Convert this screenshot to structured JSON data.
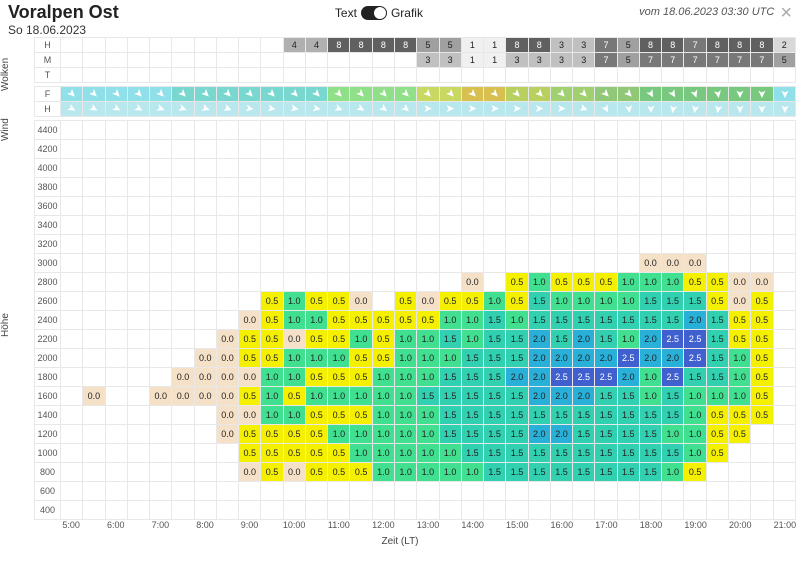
{
  "header": {
    "title": "Voralpen Ost",
    "date": "So 18.06.2023",
    "toggle_left": "Text",
    "toggle_right": "Grafik",
    "timestamp": "vom 18.06.2023 03:30 UTC",
    "close": "×"
  },
  "sections": {
    "wolken": "Wolken",
    "wind": "Wind",
    "hoehe": "Höhe"
  },
  "xaxis": {
    "label": "Zeit (LT)",
    "ticks": [
      "5:00",
      "6:00",
      "7:00",
      "8:00",
      "9:00",
      "10:00",
      "11:00",
      "12:00",
      "13:00",
      "14:00",
      "15:00",
      "16:00",
      "17:00",
      "18:00",
      "19:00",
      "20:00",
      "21:00"
    ]
  },
  "colors": {
    "cloud": {
      "1": "#f0f0f0",
      "2": "#d8d8d8",
      "3": "#c0c0c0",
      "4": "#b0b0b0",
      "5": "#a0a0a0",
      "7": "#787878",
      "8": "#606060"
    },
    "wind_f_base": "#8fe0e8",
    "wind_h_base": "#b8e8ee",
    "thermal": {
      "0.0": "#f5e0c8",
      "0.5": "#f5f000",
      "1.0": "#40e090",
      "1.5": "#30d0b0",
      "2.0": "#28b0d8",
      "2.5": "#4060d0"
    }
  },
  "cloud_rows": [
    {
      "label": "H",
      "cells": [
        null,
        null,
        null,
        null,
        null,
        null,
        null,
        null,
        null,
        null,
        "4",
        "4",
        "8",
        "8",
        "8",
        "8",
        "5",
        "5",
        "1",
        "1",
        "8",
        "8",
        "3",
        "3",
        "7",
        "5",
        "8",
        "8",
        "7",
        "8",
        "8",
        "8",
        "2"
      ]
    },
    {
      "label": "M",
      "cells": [
        null,
        null,
        null,
        null,
        null,
        null,
        null,
        null,
        null,
        null,
        null,
        null,
        null,
        null,
        null,
        null,
        "3",
        "3",
        "1",
        "1",
        "3",
        "3",
        "3",
        "3",
        "7",
        "5",
        "7",
        "7",
        "7",
        "7",
        "7",
        "7",
        "5"
      ]
    },
    {
      "label": "T",
      "cells": [
        null,
        null,
        null,
        null,
        null,
        null,
        null,
        null,
        null,
        null,
        null,
        null,
        null,
        null,
        null,
        null,
        null,
        null,
        null,
        null,
        null,
        null,
        null,
        null,
        null,
        null,
        null,
        null,
        null,
        null,
        null,
        null,
        null
      ]
    }
  ],
  "wind_rows": [
    {
      "label": "F",
      "cells": [
        {
          "c": "#8fe0e8",
          "r": 45
        },
        {
          "c": "#8fe0e8",
          "r": 45
        },
        {
          "c": "#8fe0e8",
          "r": 45
        },
        {
          "c": "#8fe0e8",
          "r": 45
        },
        {
          "c": "#8fe0e8",
          "r": 45
        },
        {
          "c": "#78d8d0",
          "r": 45
        },
        {
          "c": "#78d8d0",
          "r": 45
        },
        {
          "c": "#78d8d0",
          "r": 45
        },
        {
          "c": "#78d8d0",
          "r": 45
        },
        {
          "c": "#78d8d0",
          "r": 45
        },
        {
          "c": "#78d8d0",
          "r": 45
        },
        {
          "c": "#78d8d0",
          "r": 45
        },
        {
          "c": "#8fe088",
          "r": 45
        },
        {
          "c": "#8fe088",
          "r": 45
        },
        {
          "c": "#8fe088",
          "r": 45
        },
        {
          "c": "#8fe088",
          "r": 45
        },
        {
          "c": "#c8d860",
          "r": 45
        },
        {
          "c": "#c8d860",
          "r": 45
        },
        {
          "c": "#d8c050",
          "r": 45
        },
        {
          "c": "#d8c050",
          "r": 45
        },
        {
          "c": "#b8d060",
          "r": 45
        },
        {
          "c": "#b8d060",
          "r": 45
        },
        {
          "c": "#a0d070",
          "r": 45
        },
        {
          "c": "#a0d070",
          "r": 45
        },
        {
          "c": "#90c878",
          "r": 45
        },
        {
          "c": "#90c878",
          "r": 45
        },
        {
          "c": "#78c880",
          "r": 60
        },
        {
          "c": "#78c880",
          "r": 60
        },
        {
          "c": "#78c880",
          "r": 70
        },
        {
          "c": "#78c880",
          "r": 80
        },
        {
          "c": "#78c880",
          "r": 90
        },
        {
          "c": "#78c880",
          "r": 90
        },
        {
          "c": "#8fe0e8",
          "r": 90
        }
      ]
    },
    {
      "label": "H",
      "cells": [
        {
          "c": "#b8e8ee",
          "r": 30
        },
        {
          "c": "#b8e8ee",
          "r": 30
        },
        {
          "c": "#b8e8ee",
          "r": 30
        },
        {
          "c": "#b8e8ee",
          "r": 30
        },
        {
          "c": "#b8e8ee",
          "r": 20
        },
        {
          "c": "#b8e8ee",
          "r": 20
        },
        {
          "c": "#b8e8ee",
          "r": 20
        },
        {
          "c": "#b8e8ee",
          "r": 20
        },
        {
          "c": "#b8e8ee",
          "r": 10
        },
        {
          "c": "#b8e8ee",
          "r": 10
        },
        {
          "c": "#b8e8ee",
          "r": 10
        },
        {
          "c": "#b8e8ee",
          "r": 10
        },
        {
          "c": "#b8e8ee",
          "r": 20
        },
        {
          "c": "#b8e8ee",
          "r": 30
        },
        {
          "c": "#b8e8ee",
          "r": 40
        },
        {
          "c": "#b8e8ee",
          "r": 40
        },
        {
          "c": "#b8e8ee",
          "r": 0
        },
        {
          "c": "#b8e8ee",
          "r": 0
        },
        {
          "c": "#b8e8ee",
          "r": 0
        },
        {
          "c": "#b8e8ee",
          "r": 0
        },
        {
          "c": "#b8e8ee",
          "r": 0
        },
        {
          "c": "#b8e8ee",
          "r": 0
        },
        {
          "c": "#b8e8ee",
          "r": 0
        },
        {
          "c": "#b8e8ee",
          "r": 20
        },
        {
          "c": "#b8e8ee",
          "r": 60
        },
        {
          "c": "#b8e8ee",
          "r": 80
        },
        {
          "c": "#b8e8ee",
          "r": 90
        },
        {
          "c": "#b8e8ee",
          "r": 100
        },
        {
          "c": "#b8e8ee",
          "r": 100
        },
        {
          "c": "#b8e8ee",
          "r": 100
        },
        {
          "c": "#b8e8ee",
          "r": 90
        },
        {
          "c": "#b8e8ee",
          "r": 90
        },
        {
          "c": "#b8e8ee",
          "r": 90
        }
      ]
    }
  ],
  "altitudes": [
    4400,
    4200,
    4000,
    3800,
    3600,
    3400,
    3200,
    3000,
    2800,
    2600,
    2400,
    2200,
    2000,
    1800,
    1600,
    1400,
    1200,
    1000,
    800,
    600,
    400
  ],
  "thermal_grid": {
    "3000": {
      "26": "0.0",
      "27": "0.0",
      "28": "0.0"
    },
    "2800": {
      "18": "0.0",
      "20": "0.5",
      "21": "1.0",
      "22": "0.5",
      "23": "0.5",
      "24": "0.5",
      "25": "1.0",
      "26": "1.0",
      "27": "1.0",
      "28": "0.5",
      "29": "0.5",
      "30": "0.0",
      "31": "0.0"
    },
    "2600": {
      "9": "0.5",
      "10": "1.0",
      "11": "0.5",
      "12": "0.5",
      "13": "0.0",
      "15": "0.5",
      "16": "0.0",
      "17": "0.5",
      "18": "0.5",
      "19": "1.0",
      "20": "0.5",
      "21": "1.5",
      "22": "1.0",
      "23": "1.0",
      "24": "1.0",
      "25": "1.0",
      "26": "1.5",
      "27": "1.5",
      "28": "1.5",
      "29": "0.5",
      "30": "0.0",
      "31": "0.5"
    },
    "2400": {
      "8": "0.0",
      "9": "0.5",
      "10": "1.0",
      "11": "1.0",
      "12": "0.5",
      "13": "0.5",
      "14": "0.5",
      "15": "0.5",
      "16": "0.5",
      "17": "1.0",
      "18": "1.0",
      "19": "1.5",
      "20": "1.0",
      "21": "1.5",
      "22": "1.5",
      "23": "1.5",
      "24": "1.5",
      "25": "1.5",
      "26": "1.5",
      "27": "1.5",
      "28": "2.0",
      "29": "1.5",
      "30": "0.5",
      "31": "0.5"
    },
    "2200": {
      "7": "0.0",
      "8": "0.5",
      "9": "0.5",
      "10": "0.0",
      "11": "0.5",
      "12": "0.5",
      "13": "1.0",
      "14": "0.5",
      "15": "1.0",
      "16": "1.0",
      "17": "1.5",
      "18": "1.0",
      "19": "1.5",
      "20": "1.5",
      "21": "2.0",
      "22": "1.5",
      "23": "2.0",
      "24": "1.5",
      "25": "1.0",
      "26": "2.0",
      "27": "2.5",
      "28": "2.5",
      "29": "1.5",
      "30": "0.5",
      "31": "0.5"
    },
    "2000": {
      "6": "0.0",
      "7": "0.0",
      "8": "0.5",
      "9": "0.5",
      "10": "1.0",
      "11": "1.0",
      "12": "1.0",
      "13": "0.5",
      "14": "0.5",
      "15": "1.0",
      "16": "1.0",
      "17": "1.0",
      "18": "1.5",
      "19": "1.5",
      "20": "1.5",
      "21": "2.0",
      "22": "2.0",
      "23": "2.0",
      "24": "2.0",
      "25": "2.5",
      "26": "2.0",
      "27": "2.0",
      "28": "2.5",
      "29": "1.5",
      "30": "1.0",
      "31": "0.5"
    },
    "1800": {
      "5": "0.0",
      "6": "0.0",
      "7": "0.0",
      "8": "0.0",
      "9": "1.0",
      "10": "1.0",
      "11": "0.5",
      "12": "0.5",
      "13": "0.5",
      "14": "1.0",
      "15": "1.0",
      "16": "1.0",
      "17": "1.5",
      "18": "1.5",
      "19": "1.5",
      "20": "2.0",
      "21": "2.0",
      "22": "2.5",
      "23": "2.5",
      "24": "2.5",
      "25": "2.0",
      "26": "1.0",
      "27": "2.5",
      "28": "1.5",
      "29": "1.5",
      "30": "1.0",
      "31": "0.5"
    },
    "1600": {
      "1": "0.0",
      "4": "0.0",
      "5": "0.0",
      "6": "0.0",
      "7": "0.0",
      "8": "0.5",
      "9": "1.0",
      "10": "0.5",
      "11": "1.0",
      "12": "1.0",
      "13": "1.0",
      "14": "1.0",
      "15": "1.0",
      "16": "1.5",
      "17": "1.5",
      "18": "1.5",
      "19": "1.5",
      "20": "1.5",
      "21": "2.0",
      "22": "2.0",
      "23": "2.0",
      "24": "1.5",
      "25": "1.5",
      "26": "1.0",
      "27": "1.5",
      "28": "1.0",
      "29": "1.0",
      "30": "1.0",
      "31": "0.5"
    },
    "1400": {
      "7": "0.0",
      "8": "0.0",
      "9": "1.0",
      "10": "1.0",
      "11": "0.5",
      "12": "0.5",
      "13": "0.5",
      "14": "1.0",
      "15": "1.0",
      "16": "1.0",
      "17": "1.5",
      "18": "1.5",
      "19": "1.5",
      "20": "1.5",
      "21": "1.5",
      "22": "1.5",
      "23": "1.5",
      "24": "1.5",
      "25": "1.5",
      "26": "1.5",
      "27": "1.5",
      "28": "1.0",
      "29": "0.5",
      "30": "0.5",
      "31": "0.5"
    },
    "1200": {
      "7": "0.0",
      "8": "0.5",
      "9": "0.5",
      "10": "0.5",
      "11": "0.5",
      "12": "1.0",
      "13": "1.0",
      "14": "1.0",
      "15": "1.0",
      "16": "1.0",
      "17": "1.5",
      "18": "1.5",
      "19": "1.5",
      "20": "1.5",
      "21": "2.0",
      "22": "2.0",
      "23": "1.5",
      "24": "1.5",
      "25": "1.5",
      "26": "1.5",
      "27": "1.0",
      "28": "1.0",
      "29": "0.5",
      "30": "0.5"
    },
    "1000": {
      "8": "0.5",
      "9": "0.5",
      "10": "0.5",
      "11": "0.5",
      "12": "0.5",
      "13": "1.0",
      "14": "1.0",
      "15": "1.0",
      "16": "1.0",
      "17": "1.0",
      "18": "1.5",
      "19": "1.5",
      "20": "1.5",
      "21": "1.5",
      "22": "1.5",
      "23": "1.5",
      "24": "1.5",
      "25": "1.5",
      "26": "1.5",
      "27": "1.5",
      "28": "1.0",
      "29": "0.5"
    },
    "800": {
      "8": "0.0",
      "9": "0.5",
      "10": "0.0",
      "11": "0.5",
      "12": "0.5",
      "13": "0.5",
      "14": "1.0",
      "15": "1.0",
      "16": "1.0",
      "17": "1.0",
      "18": "1.0",
      "19": "1.5",
      "20": "1.5",
      "21": "1.5",
      "22": "1.5",
      "23": "1.5",
      "24": "1.5",
      "25": "1.5",
      "26": "1.5",
      "27": "1.0",
      "28": "0.5"
    }
  },
  "ncols": 33
}
